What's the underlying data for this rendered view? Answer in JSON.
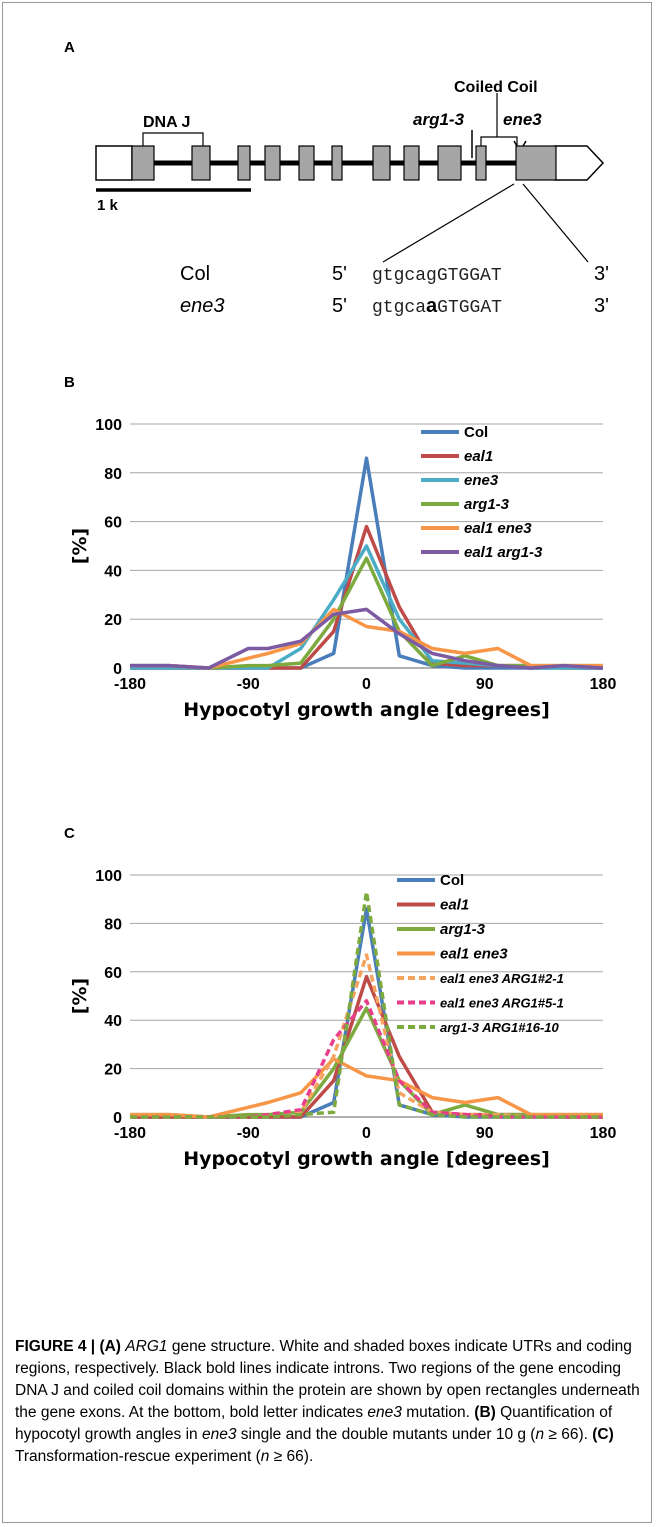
{
  "panelA": {
    "label": "A",
    "dnaj_label": "DNA J",
    "coiled_label": "Coiled Coil",
    "arg13_label": "arg1-3",
    "ene3_label": "ene3",
    "scale_label": "1 k",
    "seq_rows": [
      {
        "name": "Col",
        "prime5": "5'",
        "pre": "gtgcag",
        "mut": "",
        "post": "GTGGAT",
        "prime3": "3'"
      },
      {
        "name": "ene3",
        "prime5": "5'",
        "pre": "gtgca",
        "mut": "a",
        "post": "GTGGAT",
        "prime3": "3'"
      }
    ]
  },
  "chart_data": [
    {
      "type": "line",
      "panel_label": "B",
      "xlabel": "Hypocotyl growth angle [degrees]",
      "ylabel": "[%]",
      "xlim": [
        -180,
        180
      ],
      "ylim": [
        0,
        100
      ],
      "xticks": [
        -180,
        -90,
        0,
        90,
        180
      ],
      "yticks": [
        0,
        20,
        40,
        60,
        80,
        100
      ],
      "grid": true,
      "legend": "top-right",
      "x": [
        -180,
        -150,
        -120,
        -90,
        -75,
        -50,
        -25,
        0,
        25,
        50,
        75,
        100,
        125,
        150,
        180
      ],
      "series": [
        {
          "name": "Col",
          "color": "#4a7ebb",
          "dash": false,
          "values": [
            0,
            0,
            0,
            0,
            0,
            0,
            6,
            86,
            5,
            1,
            0,
            0,
            0,
            0,
            0
          ]
        },
        {
          "name": "eal1",
          "color": "#be4b48",
          "dash": false,
          "values": [
            0,
            0,
            0,
            0,
            0,
            0,
            15,
            58,
            25,
            2,
            1,
            1,
            1,
            0,
            0
          ]
        },
        {
          "name": "ene3",
          "color": "#4bacc6",
          "dash": false,
          "values": [
            0,
            0,
            0,
            0,
            0,
            8,
            28,
            50,
            20,
            3,
            2,
            1,
            0,
            0,
            0
          ]
        },
        {
          "name": "arg1-3",
          "color": "#7daa3e",
          "dash": false,
          "values": [
            1,
            1,
            0,
            1,
            1,
            2,
            20,
            45,
            15,
            1,
            5,
            1,
            1,
            1,
            1
          ]
        },
        {
          "name": "eal1 ene3",
          "color": "#f79646",
          "dash": false,
          "values": [
            1,
            1,
            0,
            4,
            6,
            10,
            24,
            17,
            15,
            8,
            6,
            8,
            1,
            1,
            1
          ]
        },
        {
          "name": "eal1 arg1-3",
          "color": "#7c5ba3",
          "dash": false,
          "values": [
            1,
            1,
            0,
            8,
            8,
            11,
            22,
            24,
            14,
            6,
            3,
            1,
            0,
            1,
            0
          ]
        }
      ]
    },
    {
      "type": "line",
      "panel_label": "C",
      "xlabel": "Hypocotyl growth angle [degrees]",
      "ylabel": "[%]",
      "xlim": [
        -180,
        180
      ],
      "ylim": [
        0,
        100
      ],
      "xticks": [
        -180,
        -90,
        0,
        90,
        180
      ],
      "yticks": [
        0,
        20,
        40,
        60,
        80,
        100
      ],
      "grid": true,
      "legend": "top-right",
      "x": [
        -180,
        -150,
        -120,
        -90,
        -75,
        -50,
        -25,
        0,
        25,
        50,
        75,
        100,
        125,
        150,
        180
      ],
      "series": [
        {
          "name": "Col",
          "color": "#4a7ebb",
          "dash": false,
          "values": [
            0,
            0,
            0,
            0,
            0,
            0,
            6,
            86,
            5,
            1,
            0,
            0,
            0,
            0,
            0
          ]
        },
        {
          "name": "eal1",
          "color": "#be4b48",
          "dash": false,
          "values": [
            0,
            0,
            0,
            0,
            0,
            0,
            15,
            58,
            25,
            2,
            1,
            1,
            1,
            0,
            0
          ]
        },
        {
          "name": "arg1-3",
          "color": "#7daa3e",
          "dash": false,
          "values": [
            1,
            1,
            0,
            1,
            1,
            2,
            20,
            45,
            15,
            1,
            5,
            1,
            1,
            1,
            1
          ]
        },
        {
          "name": "eal1 ene3",
          "color": "#f79646",
          "dash": false,
          "values": [
            1,
            1,
            0,
            4,
            6,
            10,
            24,
            17,
            15,
            8,
            6,
            8,
            1,
            1,
            1
          ]
        },
        {
          "name": "eal1 ene3 ARG1#2-1",
          "color": "#f4a460",
          "dash": true,
          "values": [
            0,
            0,
            0,
            0,
            1,
            2,
            25,
            67,
            10,
            2,
            1,
            1,
            0,
            0,
            0
          ]
        },
        {
          "name": "eal1 ene3 ARG1#5-1",
          "color": "#e83e8c",
          "dash": true,
          "values": [
            0,
            0,
            0,
            0,
            1,
            3,
            32,
            48,
            15,
            2,
            1,
            0,
            0,
            0,
            0
          ]
        },
        {
          "name": "arg1-3 ARG1#16-10",
          "color": "#7daa3e",
          "dash": true,
          "values": [
            0,
            0,
            0,
            0,
            0,
            1,
            2,
            93,
            5,
            1,
            0,
            0,
            0,
            0,
            0
          ]
        }
      ]
    }
  ],
  "caption": {
    "figure_label": "FIGURE 4 |",
    "parts": [
      {
        "t": " ",
        "s": ""
      },
      {
        "t": "(A)",
        "s": "b"
      },
      {
        "t": " ",
        "s": ""
      },
      {
        "t": "ARG1",
        "s": "i"
      },
      {
        "t": " gene structure. White and shaded boxes indicate UTRs and coding regions, respectively. Black bold lines indicate introns. Two regions of the gene encoding DNA J and coiled coil domains within the protein are shown by open rectangles underneath the gene exons. At the bottom, bold letter indicates ",
        "s": ""
      },
      {
        "t": "ene3",
        "s": "i"
      },
      {
        "t": " mutation. ",
        "s": ""
      },
      {
        "t": "(B)",
        "s": "b"
      },
      {
        "t": " Quantification of hypocotyl growth angles in ",
        "s": ""
      },
      {
        "t": "ene3",
        "s": "i"
      },
      {
        "t": " single and the double mutants under 10 g (",
        "s": ""
      },
      {
        "t": "n",
        "s": "i"
      },
      {
        "t": " ≥ 66). ",
        "s": ""
      },
      {
        "t": "(C)",
        "s": "b"
      },
      {
        "t": " Transformation-rescue experiment (",
        "s": ""
      },
      {
        "t": "n",
        "s": "i"
      },
      {
        "t": " ≥ 66).",
        "s": ""
      }
    ]
  }
}
